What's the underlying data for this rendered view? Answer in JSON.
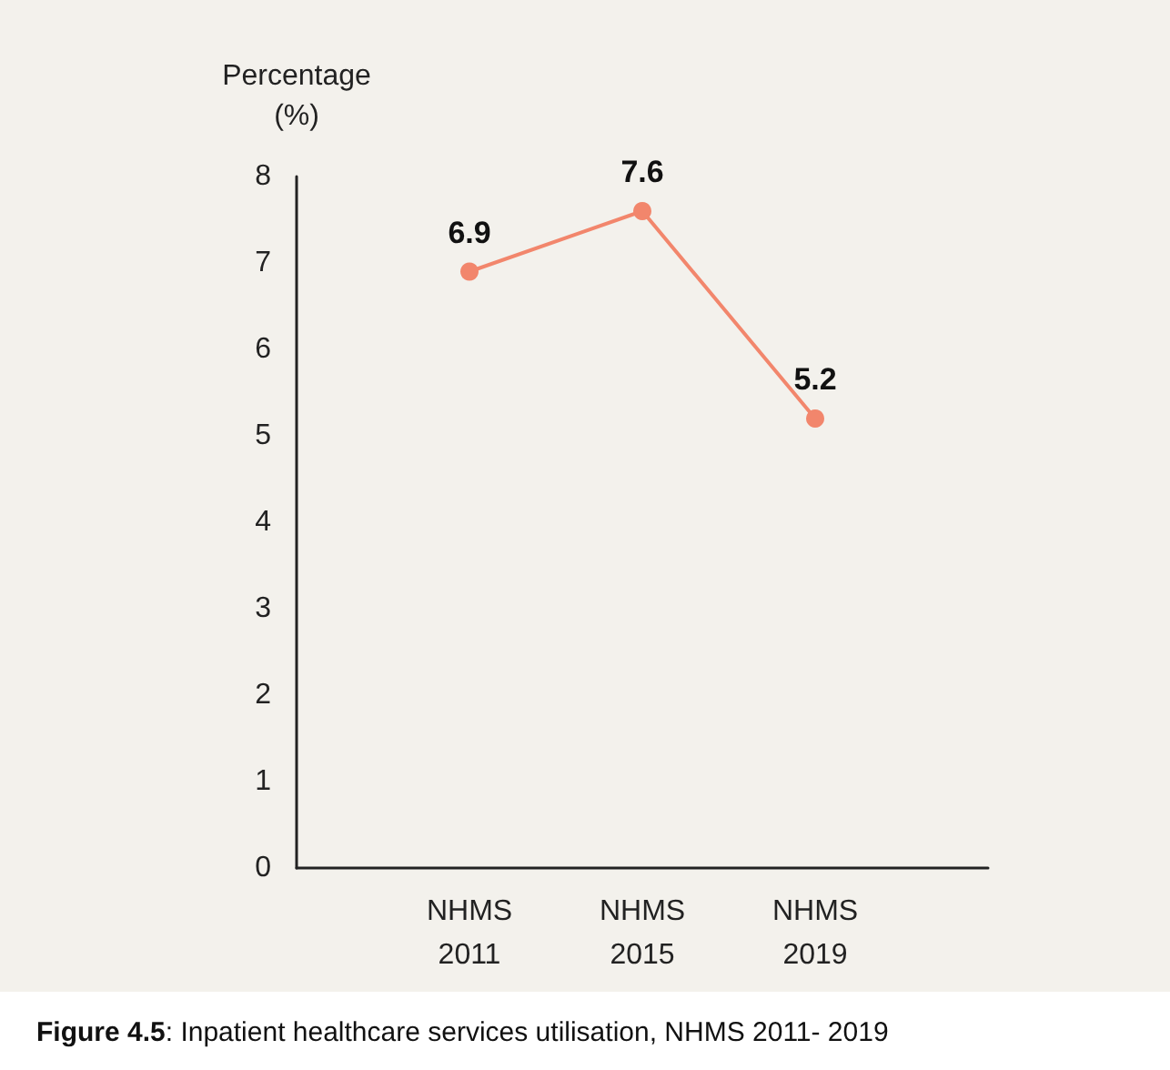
{
  "chart_data": {
    "type": "line",
    "ylabel": "Percentage\n(%)",
    "categories": [
      "NHMS\n2011",
      "NHMS\n2015",
      "NHMS\n2019"
    ],
    "series": [
      {
        "color": "#f2866c",
        "values": [
          6.9,
          7.6,
          5.2
        ]
      }
    ],
    "ylim": [
      0,
      8
    ],
    "yticks": [
      0,
      1,
      2,
      3,
      4,
      5,
      6,
      7,
      8
    ],
    "grid": false,
    "marker": "circle",
    "line_style": "solid",
    "data_labels": true,
    "annotations": [
      "Figure 4.5: Inpatient healthcare services utilisation, NHMS 2011- 2019"
    ]
  }
}
